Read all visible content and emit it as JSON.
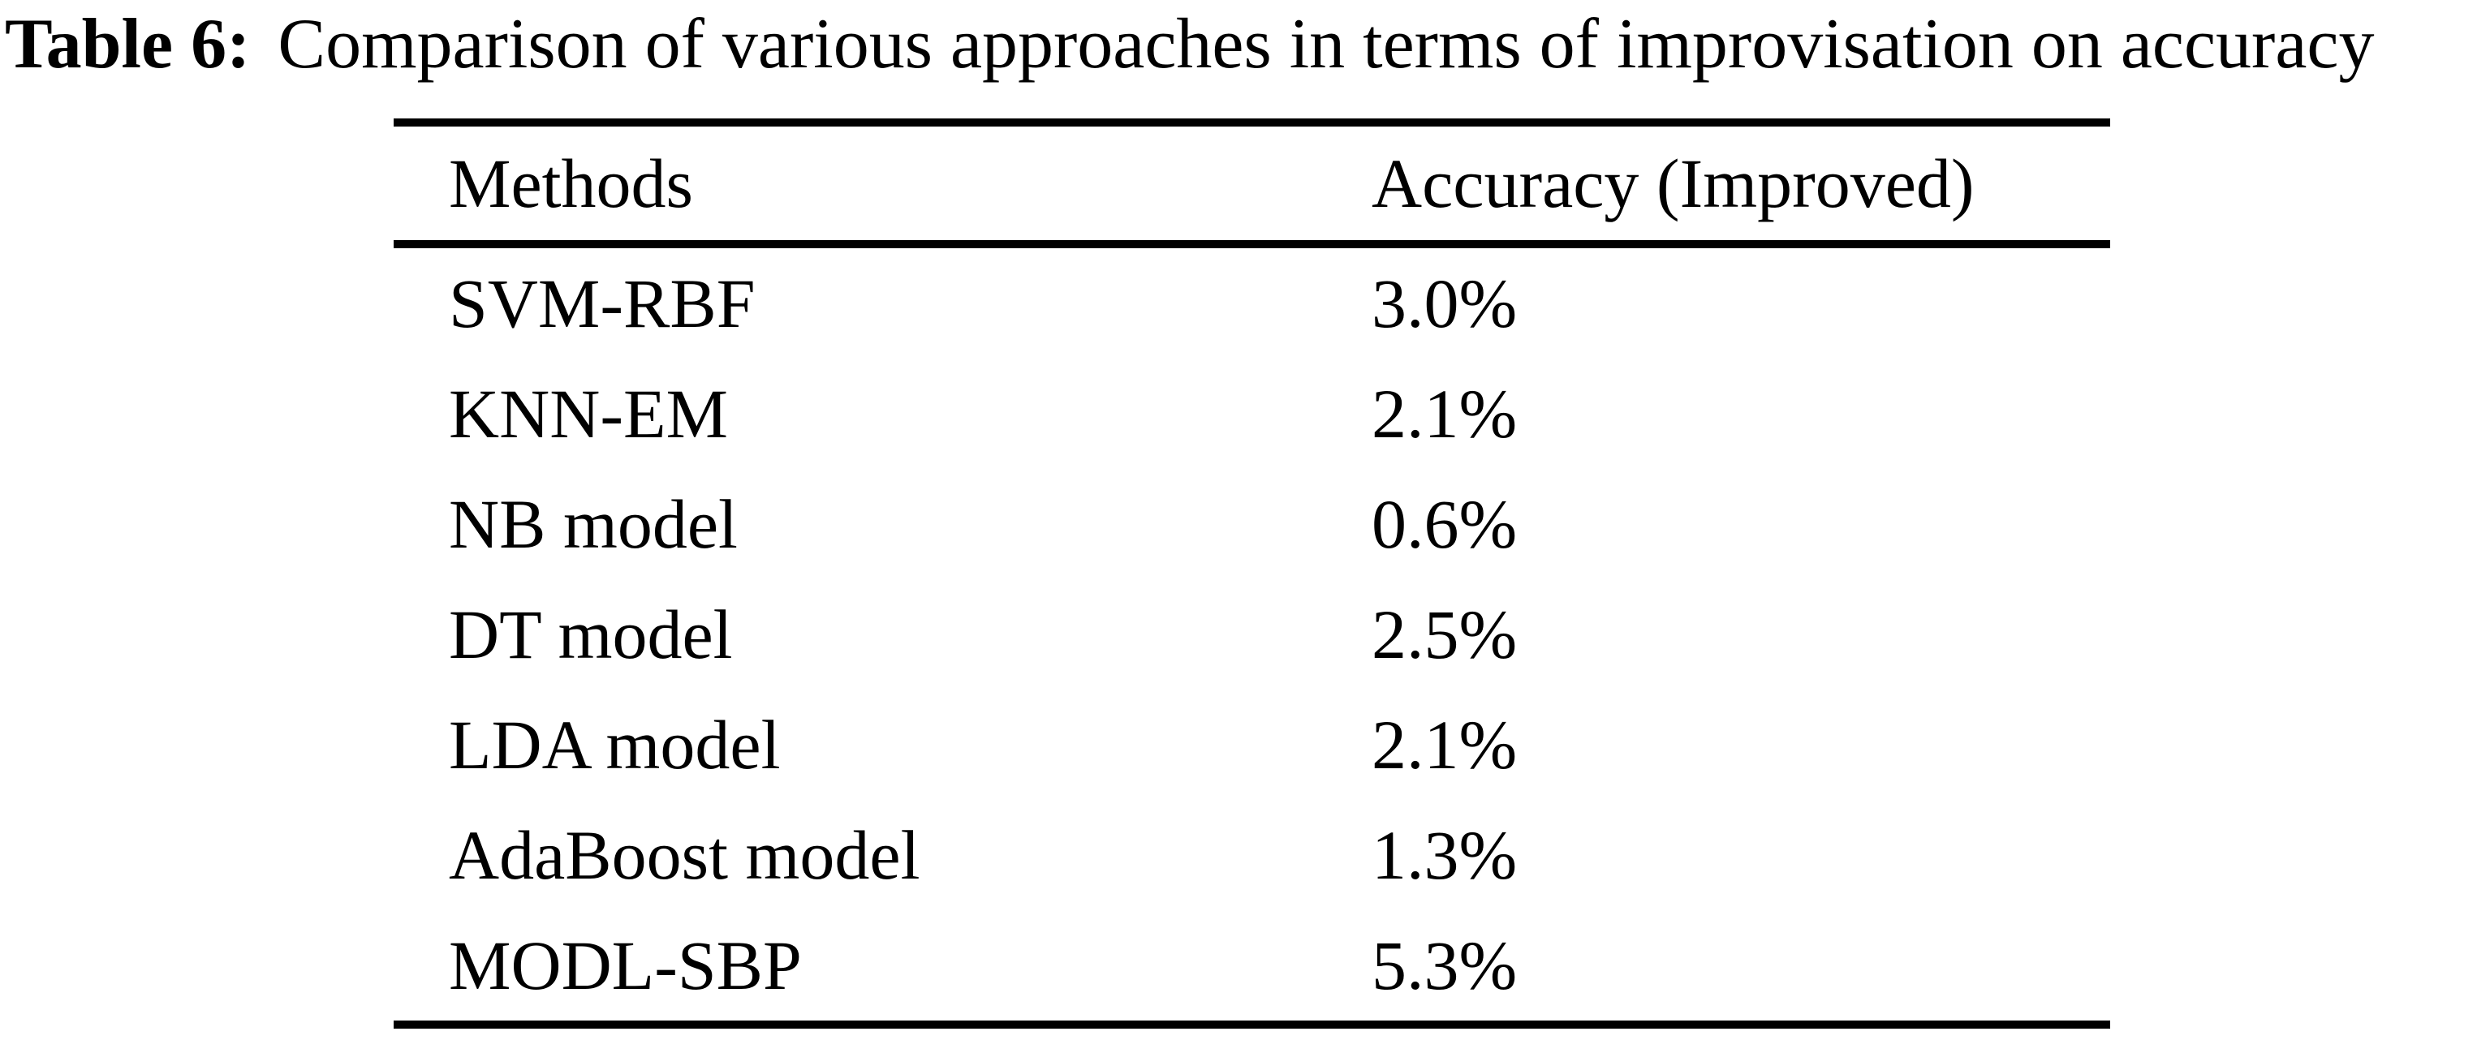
{
  "page": {
    "background_color": "#ffffff",
    "text_color": "#000000"
  },
  "caption": {
    "label": "Table 6:",
    "text": "Comparison of various approaches in terms of improvisation on accuracy"
  },
  "table": {
    "columns": [
      "Methods",
      "Accuracy (Improved)"
    ],
    "rows": [
      {
        "method": "SVM-RBF",
        "accuracy_improved": "3.0%"
      },
      {
        "method": "KNN-EM",
        "accuracy_improved": "2.1%"
      },
      {
        "method": "NB model",
        "accuracy_improved": "0.6%"
      },
      {
        "method": "DT model",
        "accuracy_improved": "2.5%"
      },
      {
        "method": "LDA model",
        "accuracy_improved": "2.1%"
      },
      {
        "method": "AdaBoost model",
        "accuracy_improved": "1.3%"
      },
      {
        "method": "MODL-SBP",
        "accuracy_improved": "5.3%"
      }
    ]
  },
  "chart_data": {
    "type": "table",
    "title": "Table 6: Comparison of various approaches in terms of improvisation on accuracy",
    "categories": [
      "SVM-RBF",
      "KNN-EM",
      "NB model",
      "DT model",
      "LDA model",
      "AdaBoost model",
      "MODL-SBP"
    ],
    "values": [
      3.0,
      2.1,
      0.6,
      2.5,
      2.1,
      1.3,
      5.3
    ],
    "value_unit": "%",
    "xlabel": "Methods",
    "ylabel": "Accuracy (Improved)"
  }
}
